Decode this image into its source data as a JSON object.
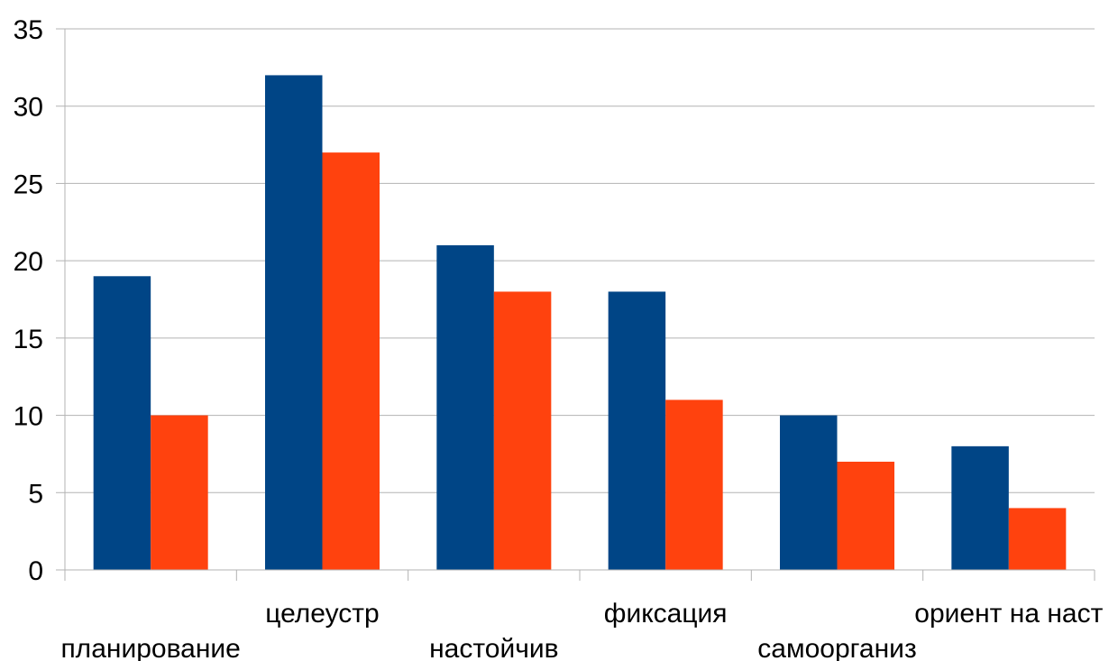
{
  "chart_data": {
    "type": "bar",
    "categories": [
      "планирование",
      "целеустр",
      "настойчив",
      "фиксация",
      "самоорганиз",
      "ориент на наст"
    ],
    "series": [
      {
        "values": [
          19,
          32,
          21,
          18,
          10,
          8
        ],
        "color": "#004586"
      },
      {
        "values": [
          10,
          27,
          18,
          11,
          7,
          4
        ],
        "color": "#ff420e"
      }
    ],
    "ylim": [
      0,
      35
    ],
    "yticks": [
      0,
      5,
      10,
      15,
      20,
      25,
      30,
      35
    ],
    "grid": true,
    "legend": "none"
  }
}
